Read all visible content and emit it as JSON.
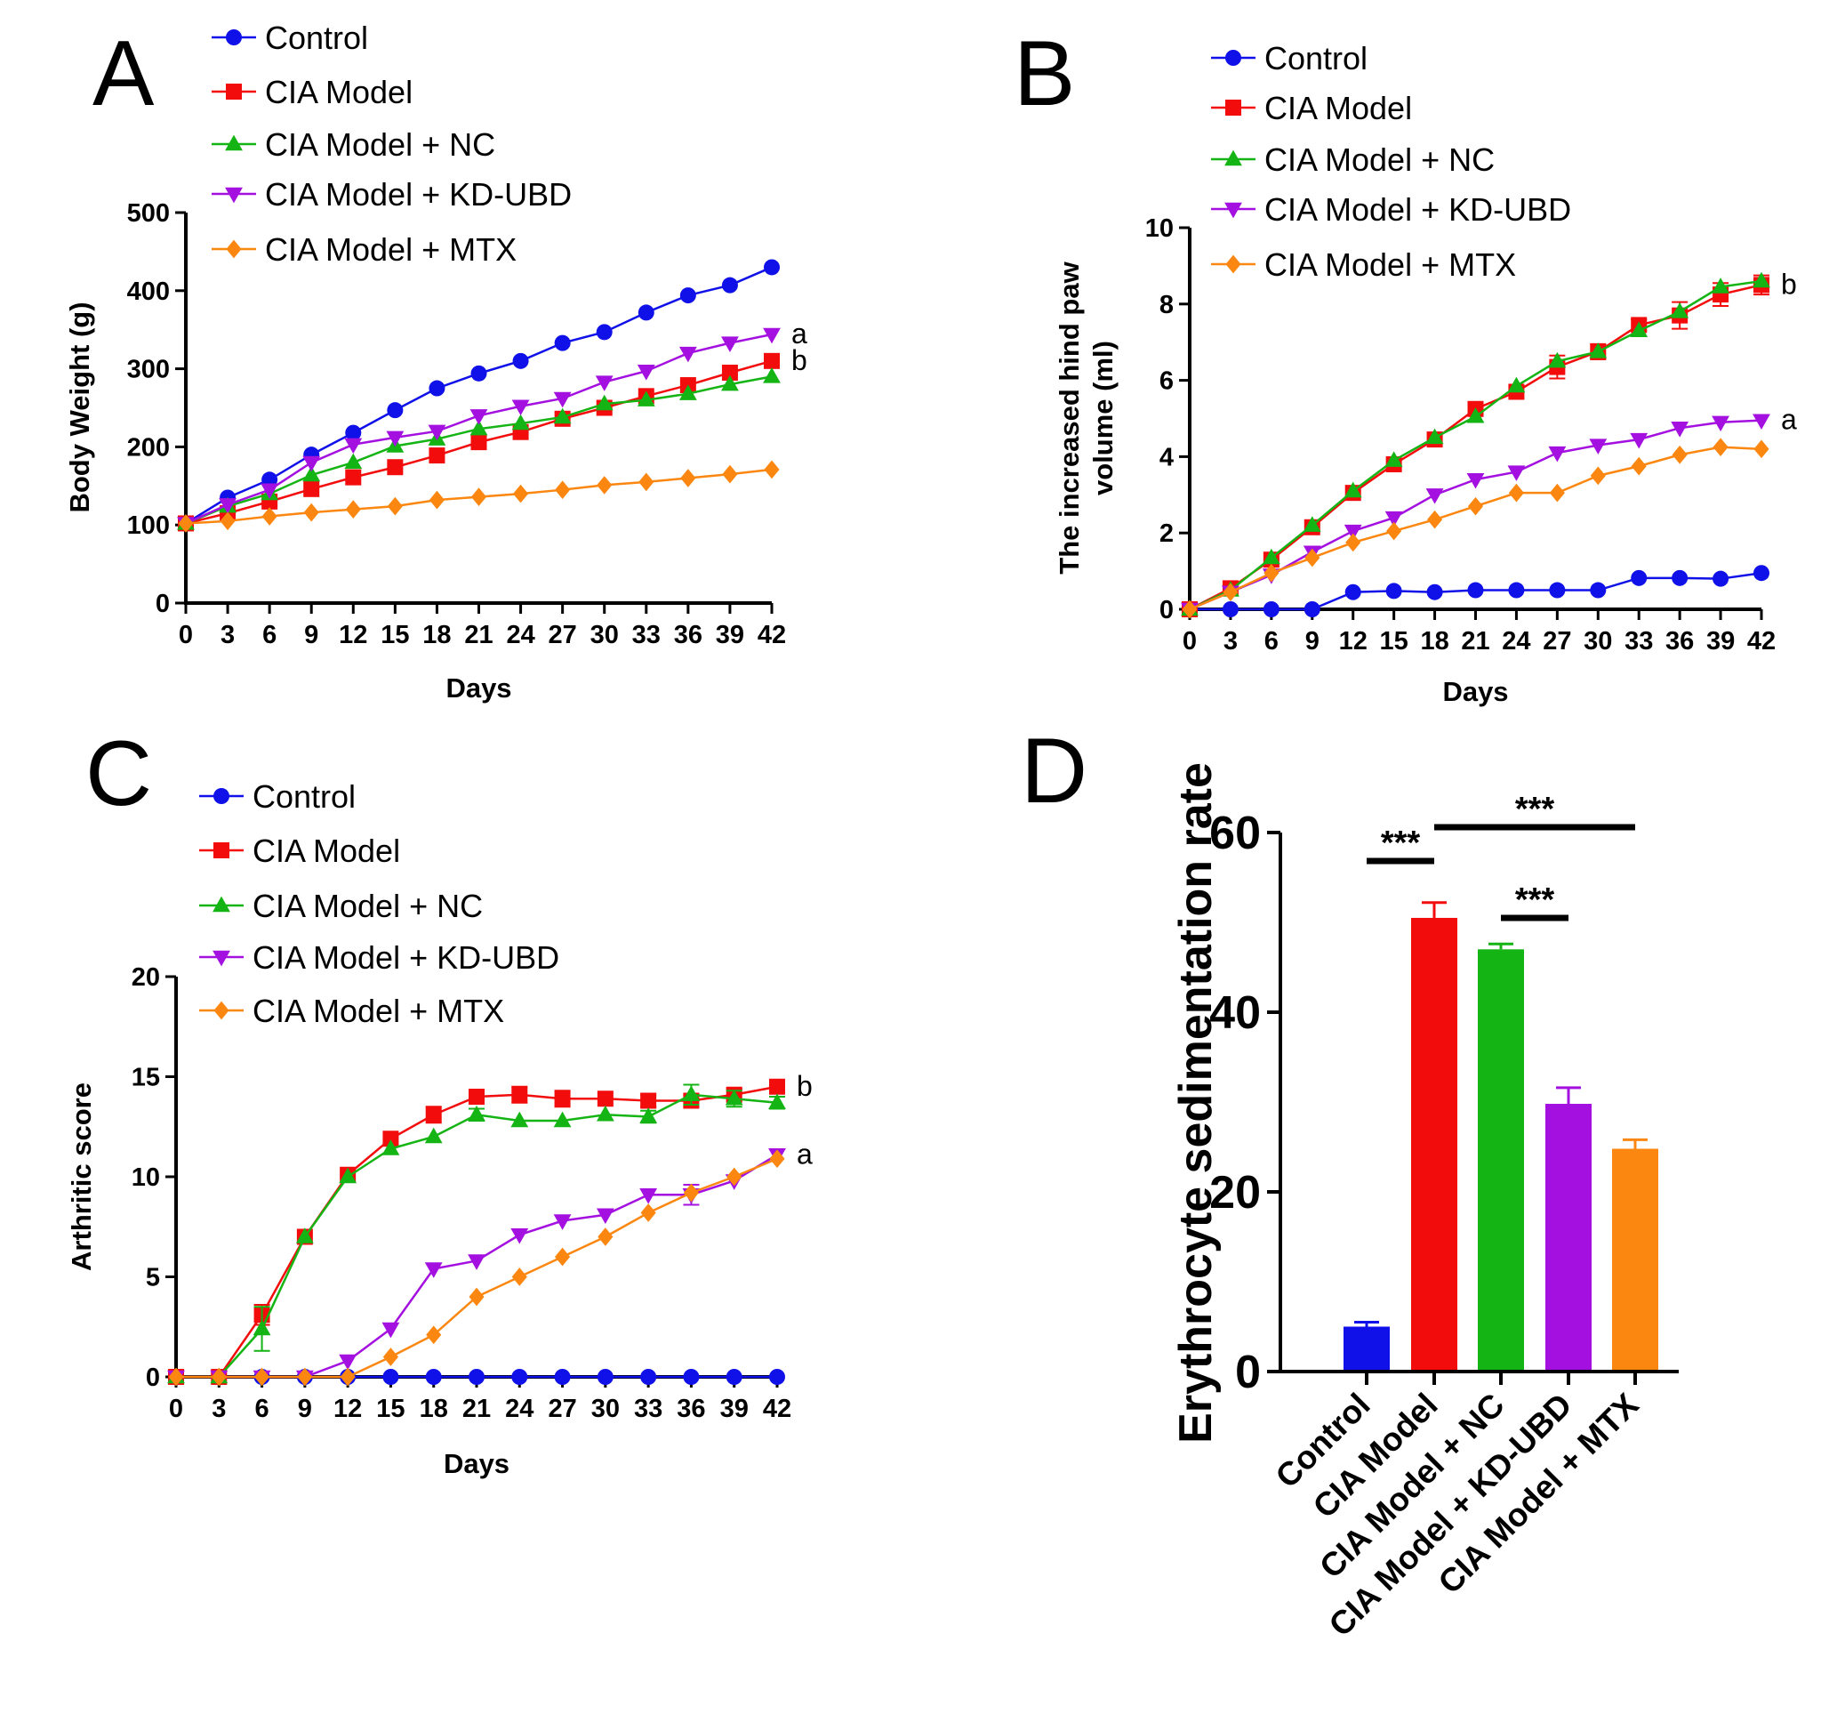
{
  "colors": {
    "Control": "#1010e8",
    "CIA Model": "#f20c0c",
    "CIA Model + NC": "#14b414",
    "CIA Model + KD-UBD": "#a310e0",
    "CIA Model + MTX": "#fb8710"
  },
  "chart_data": [
    {
      "id": "A",
      "panel_label": "A",
      "type": "line",
      "xlabel": "Days",
      "ylabel": "Body Weight (g)",
      "xlim": [
        0,
        42
      ],
      "ylim": [
        0,
        500
      ],
      "xticks": [
        0,
        3,
        6,
        9,
        12,
        15,
        18,
        21,
        24,
        27,
        30,
        33,
        36,
        39,
        42
      ],
      "yticks": [
        0,
        100,
        200,
        300,
        400,
        500
      ],
      "legend_position": "top",
      "x": [
        0,
        3,
        6,
        9,
        12,
        15,
        18,
        21,
        24,
        27,
        30,
        33,
        36,
        39,
        42
      ],
      "series": [
        {
          "name": "Control",
          "marker": "circle",
          "values": [
            102,
            135,
            158,
            190,
            218,
            247,
            275,
            294,
            310,
            333,
            347,
            372,
            394,
            407,
            430
          ]
        },
        {
          "name": "CIA Model",
          "marker": "square",
          "values": [
            102,
            115,
            130,
            146,
            161,
            174,
            189,
            206,
            219,
            236,
            250,
            265,
            279,
            295,
            310
          ]
        },
        {
          "name": "CIA Model + NC",
          "marker": "triangle-up",
          "values": [
            102,
            124,
            140,
            164,
            180,
            201,
            210,
            223,
            230,
            238,
            255,
            260,
            268,
            280,
            290
          ]
        },
        {
          "name": "CIA Model + KD-UBD",
          "marker": "triangle-down",
          "values": [
            102,
            126,
            145,
            180,
            203,
            212,
            220,
            240,
            252,
            262,
            283,
            297,
            320,
            333,
            344
          ]
        },
        {
          "name": "CIA Model + MTX",
          "marker": "diamond",
          "values": [
            102,
            105,
            111,
            116,
            120,
            124,
            132,
            136,
            140,
            145,
            151,
            155,
            160,
            165,
            171
          ]
        }
      ],
      "annotations": [
        {
          "text": "a",
          "series": "CIA Model + KD-UBD"
        },
        {
          "text": "b",
          "series": "CIA Model"
        }
      ]
    },
    {
      "id": "B",
      "panel_label": "B",
      "type": "line",
      "xlabel": "Days",
      "ylabel": "The increased hind paw volume (ml)",
      "ylabel_lines": [
        "The increased hind paw",
        "volume (ml)"
      ],
      "xlim": [
        0,
        42
      ],
      "ylim": [
        0,
        10
      ],
      "xticks": [
        0,
        3,
        6,
        9,
        12,
        15,
        18,
        21,
        24,
        27,
        30,
        33,
        36,
        39,
        42
      ],
      "yticks": [
        0,
        2,
        4,
        6,
        8,
        10
      ],
      "legend_position": "top",
      "x": [
        0,
        3,
        6,
        9,
        12,
        15,
        18,
        21,
        24,
        27,
        30,
        33,
        36,
        39,
        42
      ],
      "series": [
        {
          "name": "Control",
          "marker": "circle",
          "values": [
            0,
            0,
            0,
            0,
            0.45,
            0.48,
            0.45,
            0.5,
            0.5,
            0.5,
            0.5,
            0.82,
            0.82,
            0.8,
            0.95
          ]
        },
        {
          "name": "CIA Model",
          "marker": "square",
          "values": [
            0,
            0.55,
            1.3,
            2.15,
            3.05,
            3.8,
            4.45,
            5.25,
            5.7,
            6.35,
            6.75,
            7.45,
            7.7,
            8.25,
            8.5
          ],
          "errors": [
            0,
            0,
            0,
            0,
            0,
            0,
            0,
            0,
            0,
            0.3,
            0.2,
            0.15,
            0.35,
            0.3,
            0.25
          ]
        },
        {
          "name": "CIA Model + NC",
          "marker": "triangle-up",
          "values": [
            0,
            0.5,
            1.35,
            2.2,
            3.1,
            3.9,
            4.5,
            5.05,
            5.85,
            6.5,
            6.75,
            7.3,
            7.8,
            8.45,
            8.6
          ]
        },
        {
          "name": "CIA Model + KD-UBD",
          "marker": "triangle-down",
          "values": [
            0,
            0.45,
            0.9,
            1.5,
            2.05,
            2.4,
            3.0,
            3.4,
            3.6,
            4.1,
            4.3,
            4.45,
            4.75,
            4.9,
            4.95
          ]
        },
        {
          "name": "CIA Model + MTX",
          "marker": "diamond",
          "values": [
            0,
            0.45,
            0.95,
            1.35,
            1.75,
            2.05,
            2.35,
            2.7,
            3.05,
            3.05,
            3.5,
            3.75,
            4.05,
            4.25,
            4.2
          ]
        }
      ],
      "annotations": [
        {
          "text": "b",
          "series": "CIA Model"
        },
        {
          "text": "a",
          "series": "CIA Model + KD-UBD"
        }
      ]
    },
    {
      "id": "C",
      "panel_label": "C",
      "type": "line",
      "xlabel": "Days",
      "ylabel": "Arthritic score",
      "xlim": [
        0,
        42
      ],
      "ylim": [
        0,
        20
      ],
      "xticks": [
        0,
        3,
        6,
        9,
        12,
        15,
        18,
        21,
        24,
        27,
        30,
        33,
        36,
        39,
        42
      ],
      "yticks": [
        0,
        5,
        10,
        15,
        20
      ],
      "legend_position": "top",
      "x": [
        0,
        3,
        6,
        9,
        12,
        15,
        18,
        21,
        24,
        27,
        30,
        33,
        36,
        39,
        42
      ],
      "series": [
        {
          "name": "Control",
          "marker": "circle",
          "values": [
            0,
            0,
            0,
            0,
            0,
            0,
            0,
            0,
            0,
            0,
            0,
            0,
            0,
            0,
            0
          ]
        },
        {
          "name": "CIA Model",
          "marker": "square",
          "values": [
            0,
            0,
            3.1,
            7.0,
            10.1,
            11.9,
            13.1,
            14.0,
            14.1,
            13.9,
            13.9,
            13.8,
            13.8,
            14.1,
            14.5
          ],
          "errors": [
            0,
            0,
            0.5,
            0,
            0,
            0,
            0.4,
            0,
            0.4,
            0.4,
            0,
            0.3,
            0.3,
            0.3,
            0
          ]
        },
        {
          "name": "CIA Model + NC",
          "marker": "triangle-up",
          "values": [
            0,
            0,
            2.4,
            7.0,
            10.0,
            11.4,
            12.0,
            13.1,
            12.8,
            12.8,
            13.1,
            13.0,
            14.1,
            13.9,
            13.7
          ],
          "errors": [
            0,
            0,
            1.1,
            0,
            0,
            0,
            0,
            0.3,
            0,
            0,
            0,
            0.3,
            0.5,
            0.4,
            0.3
          ]
        },
        {
          "name": "CIA Model + KD-UBD",
          "marker": "triangle-down",
          "values": [
            0,
            0,
            0,
            0,
            0.8,
            2.4,
            5.4,
            5.8,
            7.1,
            7.8,
            8.1,
            9.1,
            9.1,
            9.8,
            11.1
          ],
          "errors": [
            0,
            0,
            0,
            0,
            0,
            0,
            0,
            0,
            0,
            0,
            0,
            0,
            0.5,
            0,
            0
          ]
        },
        {
          "name": "CIA Model + MTX",
          "marker": "diamond",
          "values": [
            0,
            0,
            0,
            0,
            0,
            1.0,
            2.1,
            4.0,
            5.0,
            6.0,
            7.0,
            8.2,
            9.2,
            10.0,
            10.9
          ]
        }
      ],
      "annotations": [
        {
          "text": "b",
          "series": "CIA Model"
        },
        {
          "text": "a",
          "series": "CIA Model + KD-UBD"
        }
      ]
    },
    {
      "id": "D",
      "panel_label": "D",
      "type": "bar",
      "xlabel": "",
      "ylabel": "Erythrocyte sedimentation rate",
      "ylim": [
        0,
        60
      ],
      "yticks": [
        0,
        20,
        40,
        60
      ],
      "categories": [
        "Control",
        "CIA Model",
        "CIA Model + NC",
        "CIA Model + KD-UBD",
        "CIA Model + MTX"
      ],
      "values": [
        5.0,
        50.5,
        47.0,
        29.8,
        24.8
      ],
      "errors": [
        0.5,
        1.7,
        0.6,
        1.8,
        1.0
      ],
      "significance": [
        {
          "from": "Control",
          "to": "CIA Model",
          "label": "***"
        },
        {
          "from": "CIA Model",
          "to": "CIA Model + MTX",
          "label": "***"
        },
        {
          "from": "CIA Model + NC",
          "to": "CIA Model + KD-UBD",
          "label": "***"
        }
      ]
    }
  ]
}
